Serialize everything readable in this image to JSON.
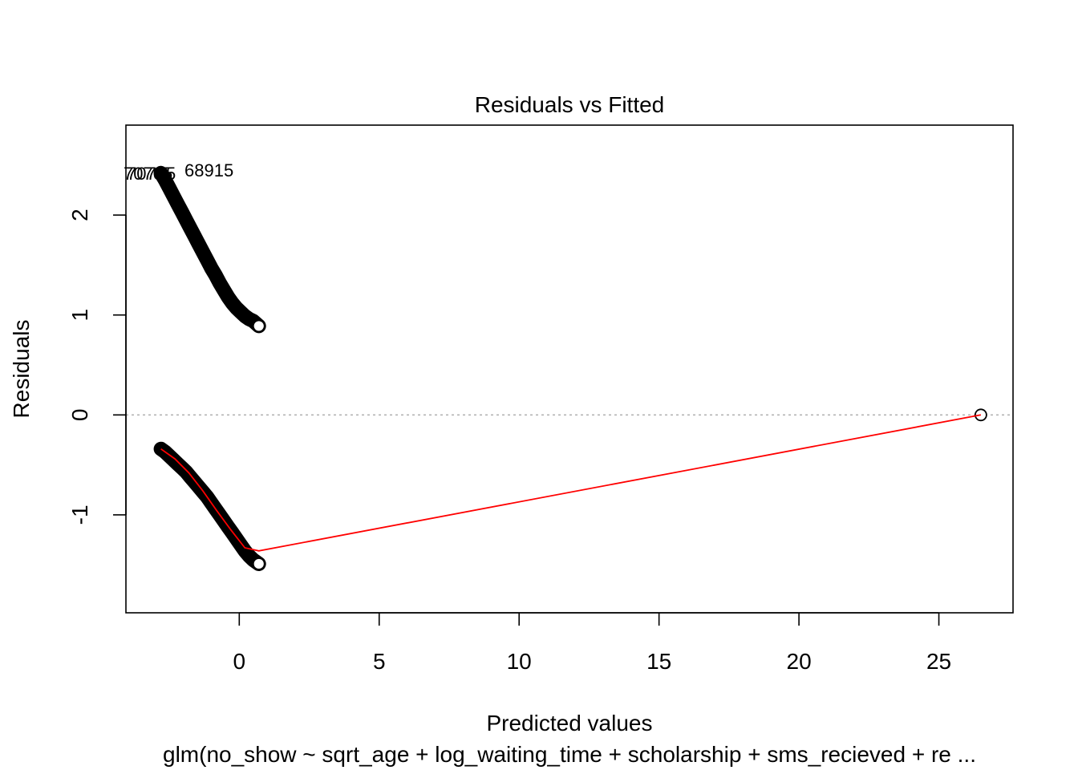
{
  "chart_data": {
    "type": "scatter",
    "title": "Residuals vs Fitted",
    "xlabel": "Predicted values",
    "ylabel": "Residuals",
    "subtitle": "glm(no_show ~ sqrt_age + log_waiting_time + scholarship + sms_recieved + re ...",
    "xlim": [
      -4.05,
      27.65
    ],
    "ylim": [
      -1.98,
      2.9
    ],
    "xticks": [
      0,
      5,
      10,
      15,
      20,
      25
    ],
    "yticks": [
      -1,
      0,
      1,
      2
    ],
    "grid": false,
    "reference_line": {
      "y": 0,
      "style": "dotted",
      "color": "#999999"
    },
    "colors": {
      "points": "#000000",
      "smoother": "#ff0000",
      "reference": "#aaaaaa"
    },
    "series": [
      {
        "band": "upper",
        "points": [
          [
            -2.8,
            2.42
          ],
          [
            -2.65,
            2.35
          ],
          [
            -2.5,
            2.27
          ],
          [
            -2.35,
            2.19
          ],
          [
            -2.2,
            2.11
          ],
          [
            -2.05,
            2.03
          ],
          [
            -1.9,
            1.95
          ],
          [
            -1.75,
            1.87
          ],
          [
            -1.6,
            1.79
          ],
          [
            -1.45,
            1.71
          ],
          [
            -1.3,
            1.63
          ],
          [
            -1.15,
            1.55
          ],
          [
            -1.0,
            1.47
          ],
          [
            -0.85,
            1.4
          ],
          [
            -0.7,
            1.32
          ],
          [
            -0.55,
            1.25
          ],
          [
            -0.4,
            1.18
          ],
          [
            -0.25,
            1.12
          ],
          [
            -0.1,
            1.07
          ],
          [
            0.05,
            1.03
          ],
          [
            0.2,
            0.99
          ],
          [
            0.35,
            0.96
          ],
          [
            0.5,
            0.94
          ],
          [
            0.7,
            0.89
          ]
        ]
      },
      {
        "band": "lower",
        "points": [
          [
            -2.8,
            -0.34
          ],
          [
            -2.65,
            -0.37
          ],
          [
            -2.5,
            -0.41
          ],
          [
            -2.35,
            -0.45
          ],
          [
            -2.2,
            -0.49
          ],
          [
            -2.05,
            -0.53
          ],
          [
            -1.9,
            -0.57
          ],
          [
            -1.75,
            -0.62
          ],
          [
            -1.6,
            -0.67
          ],
          [
            -1.45,
            -0.72
          ],
          [
            -1.3,
            -0.77
          ],
          [
            -1.15,
            -0.82
          ],
          [
            -1.0,
            -0.88
          ],
          [
            -0.85,
            -0.94
          ],
          [
            -0.7,
            -1.0
          ],
          [
            -0.55,
            -1.06
          ],
          [
            -0.4,
            -1.12
          ],
          [
            -0.25,
            -1.18
          ],
          [
            -0.1,
            -1.24
          ],
          [
            0.05,
            -1.3
          ],
          [
            0.2,
            -1.36
          ],
          [
            0.35,
            -1.41
          ],
          [
            0.5,
            -1.45
          ],
          [
            0.7,
            -1.49
          ]
        ]
      },
      {
        "band": "outlier",
        "points": [
          [
            26.5,
            0.0
          ]
        ]
      }
    ],
    "smoother": [
      [
        -2.8,
        -0.34
      ],
      [
        -2.3,
        -0.44
      ],
      [
        -1.8,
        -0.58
      ],
      [
        -1.3,
        -0.76
      ],
      [
        -0.8,
        -0.96
      ],
      [
        -0.3,
        -1.15
      ],
      [
        0.2,
        -1.33
      ],
      [
        0.7,
        -1.36
      ],
      [
        26.5,
        0.0
      ]
    ],
    "point_labels": [
      {
        "text": "70705",
        "x": -2.8,
        "y": 2.42
      },
      {
        "text": "70705",
        "x": -2.8,
        "y": 2.42
      },
      {
        "text": "68915",
        "x": -2.8,
        "y": 2.42
      }
    ]
  }
}
